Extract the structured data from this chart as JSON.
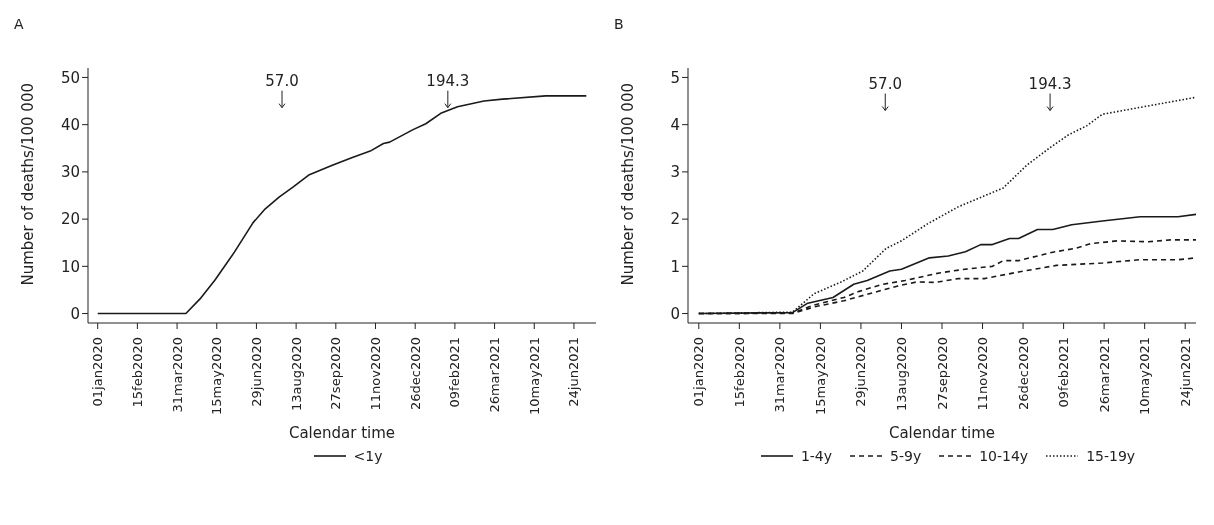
{
  "chart_data": [
    {
      "type": "line",
      "title": "A",
      "xlabel": "Calendar time",
      "ylabel": "Number of deaths/100 000",
      "legend": "bottom",
      "x": [
        "2020-01-01",
        "2020-04-10",
        "2020-04-26",
        "2020-05-13",
        "2020-06-04",
        "2020-06-25",
        "2020-07-08",
        "2020-07-25",
        "2020-08-09",
        "2020-08-28",
        "2020-09-23",
        "2020-10-15",
        "2020-11-05",
        "2020-11-20",
        "2020-11-27",
        "2020-12-23",
        "2021-01-07",
        "2021-01-24",
        "2021-02-12",
        "2021-03-14",
        "2021-04-04",
        "2021-05-23",
        "2021-07-08"
      ],
      "series": [
        {
          "name": "<1y",
          "color": "#1a1a1a",
          "line_style": "solid",
          "values": [
            0,
            0,
            3.1,
            7.1,
            13,
            19.2,
            22,
            24.7,
            26.7,
            29.4,
            31.4,
            33,
            34.4,
            36,
            36.3,
            38.9,
            40.2,
            42.4,
            43.8,
            45,
            45.4,
            46.1,
            46.1
          ]
        }
      ],
      "xlim": [
        "2019-12-21",
        "2021-07-19"
      ],
      "ylim": [
        -2,
        52
      ],
      "xticks": [
        {
          "value": "2020-01-01",
          "label": "01jan2020"
        },
        {
          "value": "2020-02-15",
          "label": "15feb2020"
        },
        {
          "value": "2020-03-31",
          "label": "31mar2020"
        },
        {
          "value": "2020-05-15",
          "label": "15may2020"
        },
        {
          "value": "2020-06-29",
          "label": "29jun2020"
        },
        {
          "value": "2020-08-13",
          "label": "13aug2020"
        },
        {
          "value": "2020-09-27",
          "label": "27sep2020"
        },
        {
          "value": "2020-11-11",
          "label": "11nov2020"
        },
        {
          "value": "2020-12-26",
          "label": "26dec2020"
        },
        {
          "value": "2021-02-09",
          "label": "09feb2021"
        },
        {
          "value": "2021-03-26",
          "label": "26mar2021"
        },
        {
          "value": "2021-05-10",
          "label": "10may2021"
        },
        {
          "value": "2021-06-24",
          "label": "24jun2021"
        }
      ],
      "yticks": [
        0,
        10,
        20,
        30,
        40,
        50
      ],
      "annotations": [
        {
          "text": "57.0",
          "x": "2020-07-28",
          "y": 43.6
        },
        {
          "text": "194.3",
          "x": "2021-02-01",
          "y": 43.6
        }
      ]
    },
    {
      "type": "line",
      "title": "B",
      "xlabel": "Calendar time",
      "ylabel": "Number of deaths/100 000",
      "legend": "bottom",
      "series": [
        {
          "name": "1-4y",
          "color": "#1a1a1a",
          "line_style": "solid",
          "x": [
            "2020-01-01",
            "2020-04-14",
            "2020-05-01",
            "2020-05-29",
            "2020-06-21",
            "2020-07-06",
            "2020-07-31",
            "2020-08-13",
            "2020-09-13",
            "2020-10-04",
            "2020-10-23",
            "2020-11-09",
            "2020-11-22",
            "2020-12-11",
            "2020-12-21",
            "2021-01-11",
            "2021-01-28",
            "2021-02-18",
            "2021-03-24",
            "2021-05-05",
            "2021-06-16",
            "2021-07-06"
          ],
          "values": [
            0,
            0.02,
            0.22,
            0.34,
            0.62,
            0.7,
            0.9,
            0.94,
            1.18,
            1.22,
            1.31,
            1.46,
            1.46,
            1.59,
            1.59,
            1.78,
            1.78,
            1.88,
            1.96,
            2.05,
            2.05,
            2.1
          ]
        },
        {
          "name": "5-9y",
          "color": "#1a1a1a",
          "line_style": "dashed",
          "x": [
            "2020-01-01",
            "2020-04-14",
            "2020-05-08",
            "2020-06-10",
            "2020-06-27",
            "2020-08-08",
            "2020-08-30",
            "2020-09-20",
            "2020-10-15",
            "2020-11-13",
            "2020-12-21",
            "2021-02-01",
            "2021-03-24",
            "2021-05-05",
            "2021-06-16",
            "2021-07-06"
          ],
          "values": [
            0,
            0,
            0.14,
            0.27,
            0.36,
            0.58,
            0.67,
            0.66,
            0.74,
            0.74,
            0.88,
            1.02,
            1.07,
            1.14,
            1.14,
            1.18
          ]
        },
        {
          "name": "10-14y",
          "color": "#1a1a1a",
          "line_style": "dashed",
          "x": [
            "2020-01-01",
            "2020-04-14",
            "2020-05-08",
            "2020-06-10",
            "2020-06-27",
            "2020-07-23",
            "2020-08-17",
            "2020-09-24",
            "2020-10-23",
            "2020-11-22",
            "2020-12-04",
            "2020-12-21",
            "2021-01-28",
            "2021-02-22",
            "2021-03-11",
            "2021-04-10",
            "2021-05-14",
            "2021-06-08",
            "2021-07-06"
          ],
          "values": [
            0,
            0.01,
            0.18,
            0.34,
            0.47,
            0.62,
            0.7,
            0.86,
            0.94,
            1.0,
            1.12,
            1.12,
            1.3,
            1.38,
            1.48,
            1.54,
            1.52,
            1.56,
            1.56
          ]
        },
        {
          "name": "15-19y",
          "color": "#1a1a1a",
          "line_style": "dotted",
          "x": [
            "2020-01-01",
            "2020-04-14",
            "2020-05-08",
            "2020-06-06",
            "2020-07-01",
            "2020-07-27",
            "2020-08-13",
            "2020-09-11",
            "2020-10-15",
            "2020-11-09",
            "2020-12-04",
            "2020-12-30",
            "2021-01-24",
            "2021-02-14",
            "2021-03-07",
            "2021-03-24",
            "2021-05-09",
            "2021-07-06"
          ],
          "values": [
            0,
            0.03,
            0.42,
            0.66,
            0.9,
            1.38,
            1.54,
            1.9,
            2.26,
            2.46,
            2.66,
            3.14,
            3.5,
            3.78,
            3.98,
            4.22,
            4.38,
            4.58
          ]
        }
      ],
      "xlim": [
        "2019-12-20",
        "2021-07-06"
      ],
      "ylim": [
        -0.2,
        5.2
      ],
      "xticks": [
        {
          "value": "2020-01-01",
          "label": "01jan2020"
        },
        {
          "value": "2020-02-15",
          "label": "15feb2020"
        },
        {
          "value": "2020-03-31",
          "label": "31mar2020"
        },
        {
          "value": "2020-05-15",
          "label": "15may2020"
        },
        {
          "value": "2020-06-29",
          "label": "29jun2020"
        },
        {
          "value": "2020-08-13",
          "label": "13aug2020"
        },
        {
          "value": "2020-09-27",
          "label": "27sep2020"
        },
        {
          "value": "2020-11-11",
          "label": "11nov2020"
        },
        {
          "value": "2020-12-26",
          "label": "26dec2020"
        },
        {
          "value": "2021-02-09",
          "label": "09feb2021"
        },
        {
          "value": "2021-03-26",
          "label": "26mar2021"
        },
        {
          "value": "2021-05-10",
          "label": "10may2021"
        },
        {
          "value": "2021-06-24",
          "label": "24jun2021"
        }
      ],
      "yticks": [
        0,
        1,
        2,
        3,
        4,
        5
      ],
      "annotations": [
        {
          "text": "57.0",
          "x": "2020-07-26",
          "y": 4.3
        },
        {
          "text": "194.3",
          "x": "2021-01-25",
          "y": 4.3
        }
      ]
    }
  ]
}
